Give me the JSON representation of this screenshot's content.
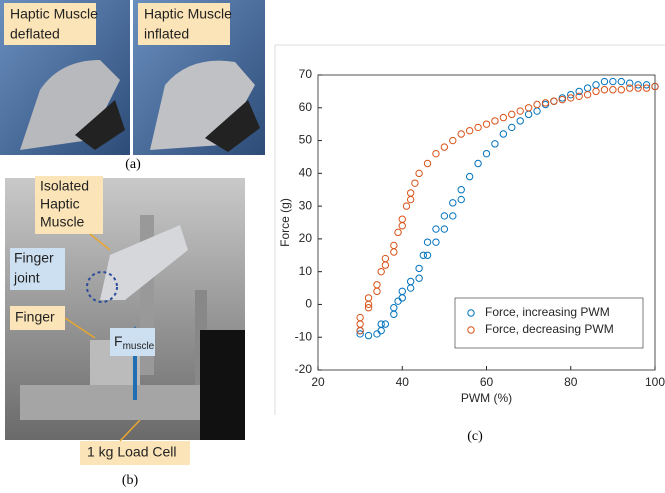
{
  "figure": {
    "a": {
      "caption": "(a)",
      "left_label": [
        "Haptic Muscle",
        "deflated"
      ],
      "right_label": [
        "Haptic Muscle",
        "inflated"
      ]
    },
    "b": {
      "caption": "(b)",
      "isolated": [
        "Isolated",
        "Haptic",
        "Muscle"
      ],
      "joint": [
        "Finger",
        "joint"
      ],
      "finger": "Finger",
      "force": {
        "symbol": "F",
        "subscript": "muscle"
      },
      "load_cell": "1 kg Load Cell"
    },
    "c": {
      "caption": "(c)"
    }
  },
  "chart_data": {
    "type": "scatter",
    "xlabel": "PWM (%)",
    "ylabel": "Force (g)",
    "xlim": [
      20,
      100
    ],
    "xticks": [
      20,
      40,
      60,
      80,
      100
    ],
    "ylim": [
      -20,
      70
    ],
    "yticks": [
      -20,
      -10,
      0,
      10,
      20,
      30,
      40,
      50,
      60,
      70
    ],
    "legend": "lower right",
    "series": [
      {
        "name": "Force, increasing PWM",
        "color": "#0072BD",
        "x": [
          30,
          30,
          32,
          34,
          35,
          35,
          36,
          38,
          38,
          39,
          40,
          40,
          42,
          42,
          44,
          44,
          45,
          46,
          46,
          48,
          48,
          50,
          50,
          52,
          52,
          54,
          54,
          56,
          58,
          60,
          62,
          64,
          66,
          68,
          70,
          72,
          74,
          76,
          78,
          80,
          82,
          84,
          86,
          88,
          90,
          92,
          94,
          96,
          98,
          100
        ],
        "values": [
          -9,
          -8,
          -9.5,
          -9,
          -8,
          -6,
          -6,
          -3,
          -1,
          1,
          4,
          2,
          7,
          5,
          11,
          8,
          15,
          19,
          15,
          23,
          19,
          27,
          23,
          31,
          27,
          35,
          32,
          39,
          43,
          46,
          49,
          52,
          54,
          56,
          58,
          59,
          61,
          62,
          63,
          64,
          65,
          66,
          67,
          68,
          68,
          68,
          67.5,
          67,
          67,
          66.5
        ]
      },
      {
        "name": "Force, decreasing PWM",
        "color": "#D95319",
        "x": [
          30,
          30,
          30,
          32,
          32,
          32,
          34,
          34,
          35,
          36,
          36,
          38,
          38,
          39,
          40,
          40,
          41,
          42,
          42,
          43,
          44,
          46,
          48,
          50,
          52,
          54,
          56,
          58,
          60,
          62,
          64,
          66,
          68,
          70,
          72,
          74,
          76,
          78,
          80,
          82,
          84,
          86,
          88,
          90,
          92,
          94,
          96,
          98,
          100
        ],
        "values": [
          -8,
          -6,
          -4,
          -1,
          0,
          2,
          4,
          6,
          10,
          12,
          14,
          16,
          18,
          22,
          24,
          26,
          30,
          32,
          34,
          37,
          40,
          43,
          46,
          48,
          50,
          52,
          53,
          54,
          55,
          56,
          57,
          58,
          59,
          60,
          61,
          61.5,
          62,
          62.5,
          63,
          63.5,
          64,
          65,
          65.5,
          65.5,
          65.5,
          66,
          66,
          66,
          66.5
        ]
      }
    ]
  }
}
